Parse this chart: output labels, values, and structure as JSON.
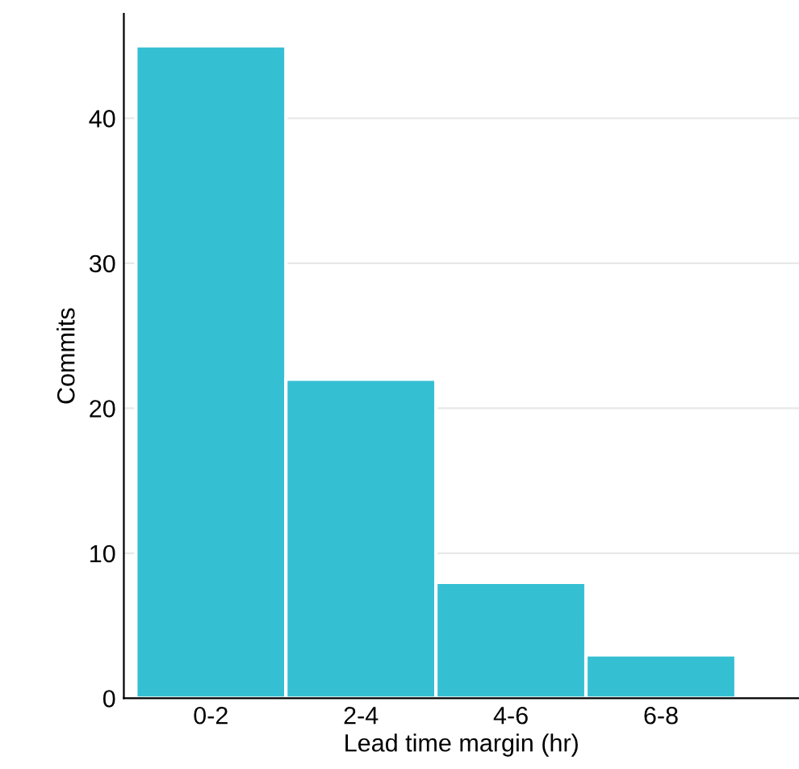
{
  "chart_data": {
    "type": "bar",
    "xlabel": "Lead time margin (hr)",
    "ylabel": "Commits",
    "categories": [
      "0-2",
      "2-4",
      "4-6",
      "6-8"
    ],
    "values": [
      45,
      22,
      8,
      3
    ],
    "color": "#35bfd3",
    "ylim": [
      0,
      47.2
    ],
    "yticks": [
      0,
      10,
      20,
      30,
      40
    ],
    "grid": "y"
  }
}
